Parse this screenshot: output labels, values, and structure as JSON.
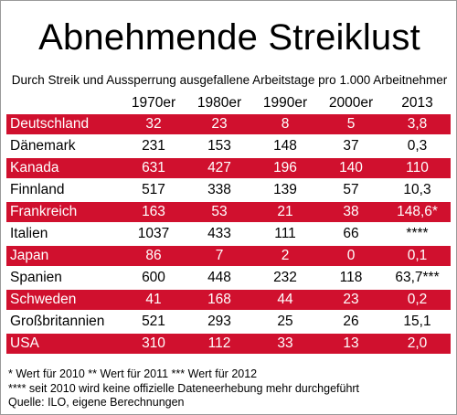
{
  "title": "Abnehmende Streiklust",
  "subtitle": "Durch Streik und Aussperrung ausgefallene Arbeitstage pro 1.000 Arbeitnehmer",
  "colors": {
    "accent_row": "#d0102e",
    "accent_text": "#ffffff",
    "plain_text": "#000000"
  },
  "chart_data": {
    "type": "table",
    "title": "Abnehmende Streiklust",
    "subtitle": "Durch Streik und Aussperrung ausgefallene Arbeitstage pro 1.000 Arbeitnehmer",
    "columns": [
      "",
      "1970er",
      "1980er",
      "1990er",
      "2000er",
      "2013"
    ],
    "rows": [
      {
        "country": "Deutschland",
        "values": [
          "32",
          "23",
          "8",
          "5",
          "3,8"
        ],
        "highlight": true
      },
      {
        "country": "Dänemark",
        "values": [
          "231",
          "153",
          "148",
          "37",
          "0,3"
        ],
        "highlight": false
      },
      {
        "country": "Kanada",
        "values": [
          "631",
          "427",
          "196",
          "140",
          "110"
        ],
        "highlight": true
      },
      {
        "country": "Finnland",
        "values": [
          "517",
          "338",
          "139",
          "57",
          "10,3"
        ],
        "highlight": false
      },
      {
        "country": "Frankreich",
        "values": [
          "163",
          "53",
          "21",
          "38",
          "148,6*"
        ],
        "highlight": true
      },
      {
        "country": "Italien",
        "values": [
          "1037",
          "433",
          "111",
          "66",
          "****"
        ],
        "highlight": false
      },
      {
        "country": "Japan",
        "values": [
          "86",
          "7",
          "2",
          "0",
          "0,1"
        ],
        "highlight": true
      },
      {
        "country": "Spanien",
        "values": [
          "600",
          "448",
          "232",
          "118",
          "63,7***"
        ],
        "highlight": false
      },
      {
        "country": "Schweden",
        "values": [
          "41",
          "168",
          "44",
          "23",
          "0,2"
        ],
        "highlight": true
      },
      {
        "country": "Großbritannien",
        "values": [
          "521",
          "293",
          "25",
          "26",
          "15,1"
        ],
        "highlight": false
      },
      {
        "country": "USA",
        "values": [
          "310",
          "112",
          "33",
          "13",
          "2,0"
        ],
        "highlight": true
      }
    ],
    "footnotes": [
      "* Wert für 2010 ** Wert für 2011 *** Wert für 2012",
      "**** seit 2010 wird keine offizielle Dateneerhebung mehr durchgeführt",
      "Quelle: ILO, eigene Berechnungen"
    ]
  }
}
